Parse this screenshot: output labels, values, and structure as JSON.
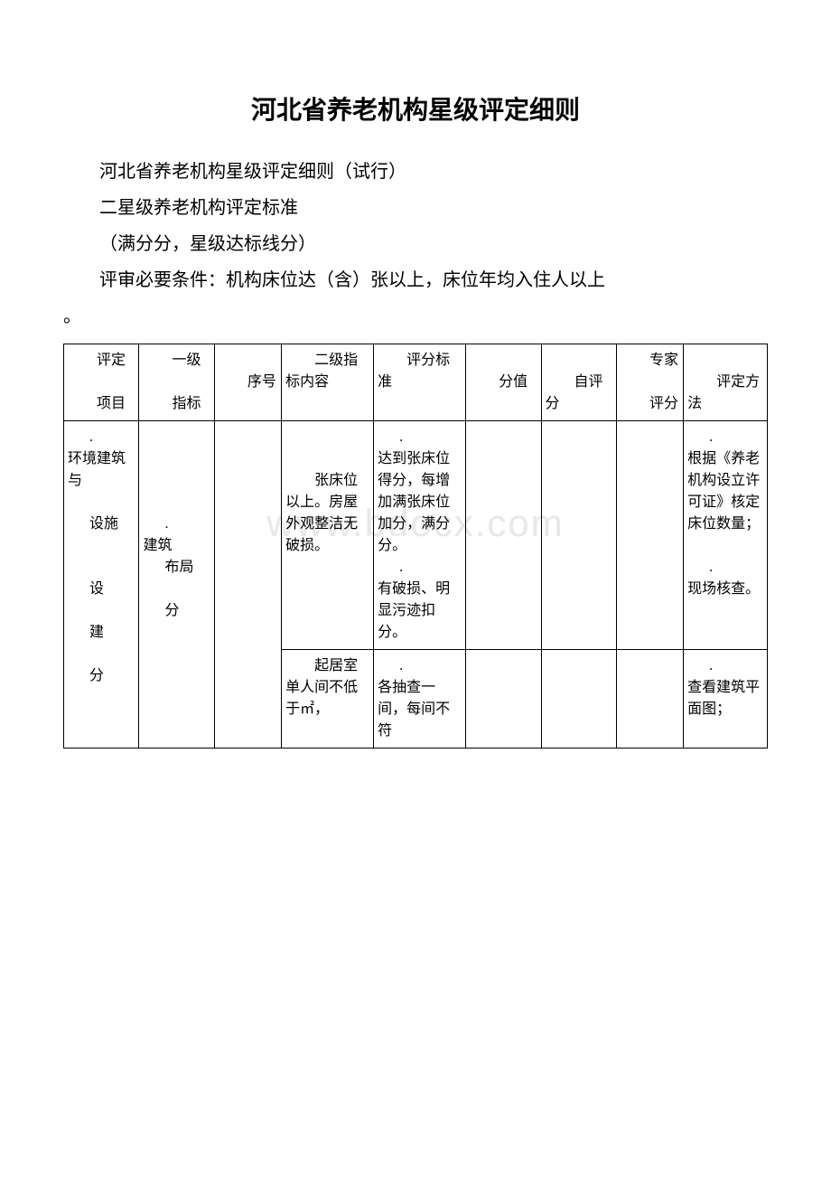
{
  "document": {
    "title": "河北省养老机构星级评定细则",
    "subtitle": "河北省养老机构星级评定细则（试行）",
    "line2": "二星级养老机构评定标准",
    "line3": "（满分分，星级达标线分）",
    "line4": "评审必要条件：机构床位达（含）张以上，床位年均入住人以上",
    "line4_end": "。"
  },
  "watermark": "www.bdocx.com",
  "table": {
    "headers": {
      "col1": "评定",
      "col1_2": "项目",
      "col2": "一级",
      "col2_2": "指标",
      "col3": "序号",
      "col4": "二级指标内容",
      "col5": "评分标准",
      "col6": "分值",
      "col7": "自评分",
      "col8": "专家",
      "col8_2": "评分",
      "col9": "评定方法"
    },
    "row1": {
      "col1_a": ".",
      "col1_b": "环境建筑与",
      "col1_c": "设施",
      "col1_d": "设",
      "col1_e": "建",
      "col1_f": "分",
      "col2_a": ".",
      "col2_b": "建筑",
      "col2_c": "布局",
      "col2_d": "分",
      "col4_a": "张床位以上。房屋外观整洁无破损。",
      "col5_a": ".",
      "col5_b": "达到张床位得分，每增加满张床位加分，满分分。",
      "col5_c": ".",
      "col5_d": "有破损、明显污迹扣分。",
      "col9_a": ".",
      "col9_b": "根据《养老机构设立许可证》核定床位数量；",
      "col9_c": ".",
      "col9_d": "现场核查。"
    },
    "row2": {
      "col4_a": "起居室单人间不低于㎡，",
      "col5_a": ".",
      "col5_b": "各抽查一间，每间不符",
      "col9_a": ".",
      "col9_b": "查看建筑平面图；"
    }
  },
  "colors": {
    "text": "#000000",
    "background": "#ffffff",
    "border": "#000000",
    "watermark": "#e8e8e8"
  }
}
